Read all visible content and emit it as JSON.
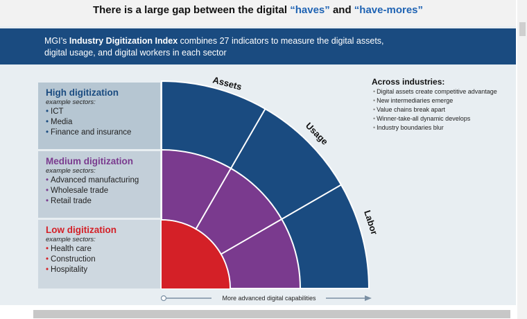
{
  "title": {
    "pre": "There is a large gap between the digital ",
    "haves": "“haves”",
    "and": " and ",
    "have_mores": "“have-mores”"
  },
  "banner": {
    "pre": "MGI’s ",
    "bold": "Industry Digitization Index",
    "line1_rest": " combines 27 indicators to measure the digital assets,",
    "line2": "digital usage, and digital workers in each sector"
  },
  "levels": {
    "high": {
      "heading": "High digitization",
      "sub": "example sectors:",
      "items": [
        "ICT",
        "Media",
        "Finance and insurance"
      ]
    },
    "medium": {
      "heading": "Medium digitization",
      "sub": "example sectors:",
      "items": [
        "Advanced manufacturing",
        "Wholesale trade",
        "Retail trade"
      ]
    },
    "low": {
      "heading": "Low digitization",
      "sub": "example sectors:",
      "items": [
        "Health care",
        "Construction",
        "Hospitality"
      ]
    }
  },
  "arcs": {
    "assets": "Assets",
    "usage": "Usage",
    "labor": "Labor"
  },
  "axis_label": "More advanced digital capabilities",
  "side": {
    "heading": "Across industries:",
    "items": [
      "Digital assets create competitive advantage",
      "New intermediaries emerge",
      "Value chains break apart",
      "Winner-take-all dynamic develops",
      "Industry boundaries blur"
    ]
  },
  "colors": {
    "navy": "#1a4b80",
    "purple": "#7a3a8e",
    "red": "#d42027",
    "accent_blue": "#1f63b3"
  }
}
